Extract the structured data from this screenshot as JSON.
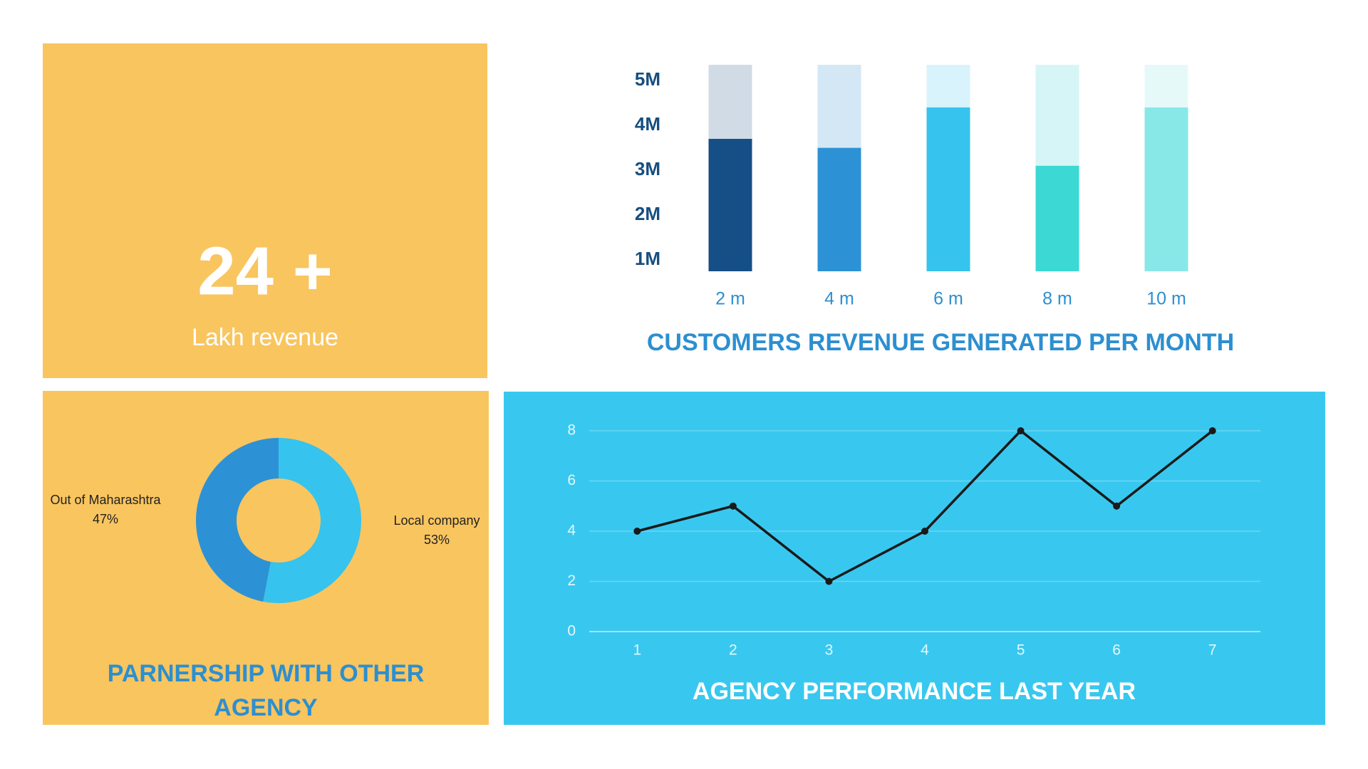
{
  "stat": {
    "value": "24 +",
    "label": "Lakh revenue"
  },
  "chart_data": [
    {
      "type": "bar",
      "title": "CUSTOMERS REVENUE GENERATED PER MONTH",
      "categories": [
        "2 m",
        "4 m",
        "6 m",
        "8 m",
        "10 m"
      ],
      "values": [
        3.7,
        3.5,
        4.4,
        3.1,
        4.4
      ],
      "colors": [
        "#154f86",
        "#2c92d5",
        "#36c3ee",
        "#3bd8d4",
        "#88e8e8"
      ],
      "track_colors": [
        "#d0dbe6",
        "#d4e7f5",
        "#d8f3fb",
        "#d6f5f6",
        "#e6f9f9"
      ],
      "ylim": [
        0.75,
        5.35
      ],
      "yticks": [
        {
          "value": 1,
          "label": "1M"
        },
        {
          "value": 2,
          "label": "2M"
        },
        {
          "value": 3,
          "label": "3M"
        },
        {
          "value": 4,
          "label": "4M"
        },
        {
          "value": 5,
          "label": "5M"
        }
      ]
    },
    {
      "type": "pie",
      "title": "PARNERSHIP WITH OTHER AGENCY",
      "categories": [
        "Local company",
        "Out of Maharashtra"
      ],
      "values": [
        53,
        47
      ],
      "value_labels": [
        "53%",
        "47%"
      ],
      "colors": [
        "#36c3ee",
        "#2c92d5"
      ],
      "donut": true
    },
    {
      "type": "line",
      "title": "AGENCY PERFORMANCE LAST YEAR",
      "x": [
        1,
        2,
        3,
        4,
        5,
        6,
        7
      ],
      "values": [
        4,
        5,
        2,
        4,
        8,
        5,
        8
      ],
      "color": "#1a1a1a",
      "xlim": [
        0.5,
        7.5
      ],
      "xticks": [
        1,
        2,
        3,
        4,
        5,
        6,
        7
      ],
      "ylim": [
        0,
        8
      ],
      "yticks": [
        0,
        2,
        4,
        6,
        8
      ],
      "grid": true
    }
  ]
}
